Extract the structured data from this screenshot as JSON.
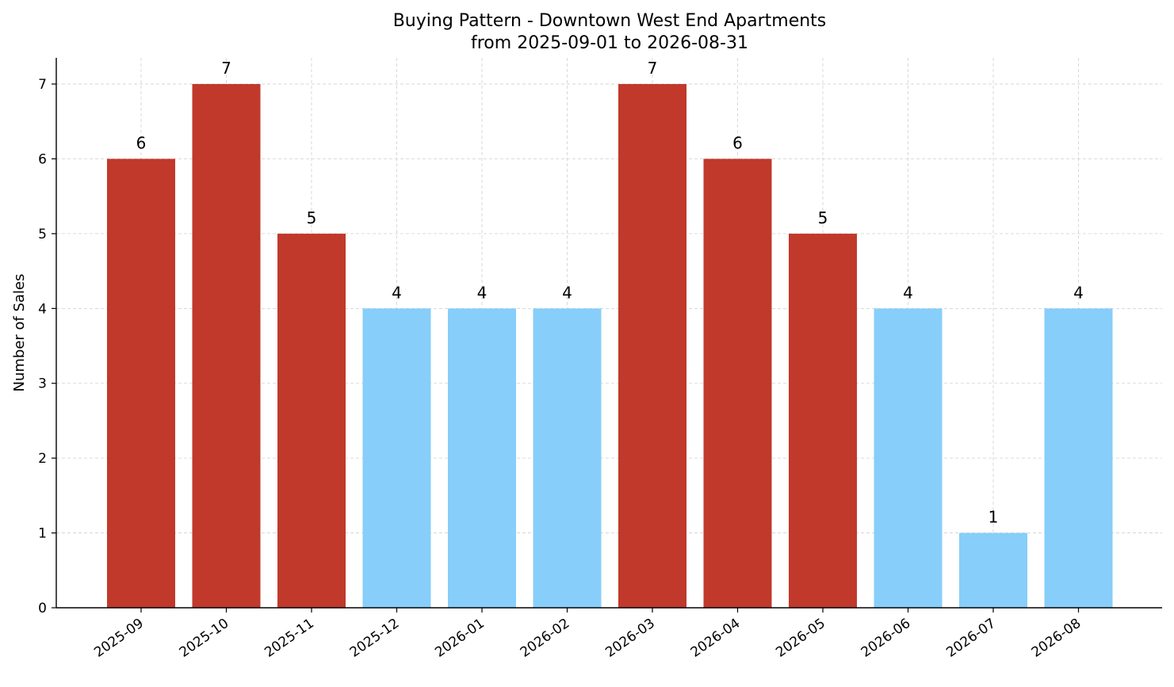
{
  "chart_data": {
    "type": "bar",
    "title": "Buying Pattern - Downtown West End Apartments",
    "subtitle": "from 2025-09-01 to 2026-08-31",
    "xlabel": "",
    "ylabel": "Number of Sales",
    "categories": [
      "2025-09",
      "2025-10",
      "2025-11",
      "2025-12",
      "2026-01",
      "2026-02",
      "2026-03",
      "2026-04",
      "2026-05",
      "2026-06",
      "2026-07",
      "2026-08"
    ],
    "values": [
      6,
      7,
      5,
      4,
      4,
      4,
      7,
      6,
      5,
      4,
      1,
      4
    ],
    "bar_colors": [
      "#c0392b",
      "#c0392b",
      "#c0392b",
      "#87cefa",
      "#87cefa",
      "#87cefa",
      "#c0392b",
      "#c0392b",
      "#c0392b",
      "#87cefa",
      "#87cefa",
      "#87cefa"
    ],
    "yticks": [
      0,
      1,
      2,
      3,
      4,
      5,
      6,
      7
    ],
    "ylim": [
      0,
      7.35
    ],
    "grid": true,
    "legend": false
  }
}
